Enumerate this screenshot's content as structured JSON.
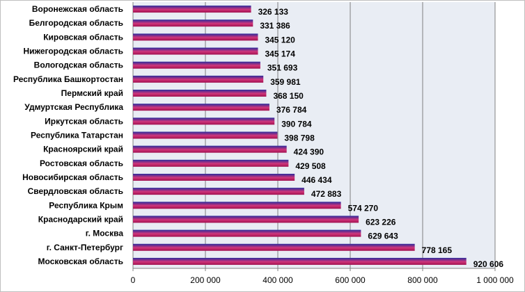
{
  "chart_data": {
    "type": "bar",
    "orientation": "horizontal",
    "categories": [
      "Воронежская область",
      "Белгородская область",
      "Кировская область",
      "Нижегородская область",
      "Вологодская область",
      "Республика Башкортостан",
      "Пермский край",
      "Удмуртская Республика",
      "Иркутская область",
      "Республика Татарстан",
      "Красноярский край",
      "Ростовская область",
      "Новосибирская область",
      "Свердловская область",
      "Республика Крым",
      "Краснодарский край",
      "г. Москва",
      "г. Санкт-Петербург",
      "Московская область"
    ],
    "values": [
      326133,
      331386,
      345120,
      345174,
      351693,
      359981,
      368150,
      376784,
      390784,
      398798,
      424390,
      429508,
      446434,
      472883,
      574270,
      623226,
      629643,
      778165,
      920606
    ],
    "value_labels": [
      "326 133",
      "331 386",
      "345 120",
      "345 174",
      "351 693",
      "359 981",
      "368 150",
      "376 784",
      "390 784",
      "398 798",
      "424 390",
      "429 508",
      "446 434",
      "472 883",
      "574 270",
      "623 226",
      "629 643",
      "778 165",
      "920 606"
    ],
    "xlim": [
      0,
      1000000
    ],
    "xticks": [
      0,
      200000,
      400000,
      600000,
      800000,
      1000000
    ],
    "xtick_labels": [
      "0",
      "200 000",
      "400 000",
      "600 000",
      "800 000",
      "1 000 000"
    ],
    "grid": true,
    "legend": "none",
    "colors": {
      "bar_top": "#2a2a9c",
      "bar_mid": "#d0357a",
      "bar_bottom": "#a01050",
      "plot_background": "#e9edf4",
      "gridline": "#808080"
    }
  }
}
